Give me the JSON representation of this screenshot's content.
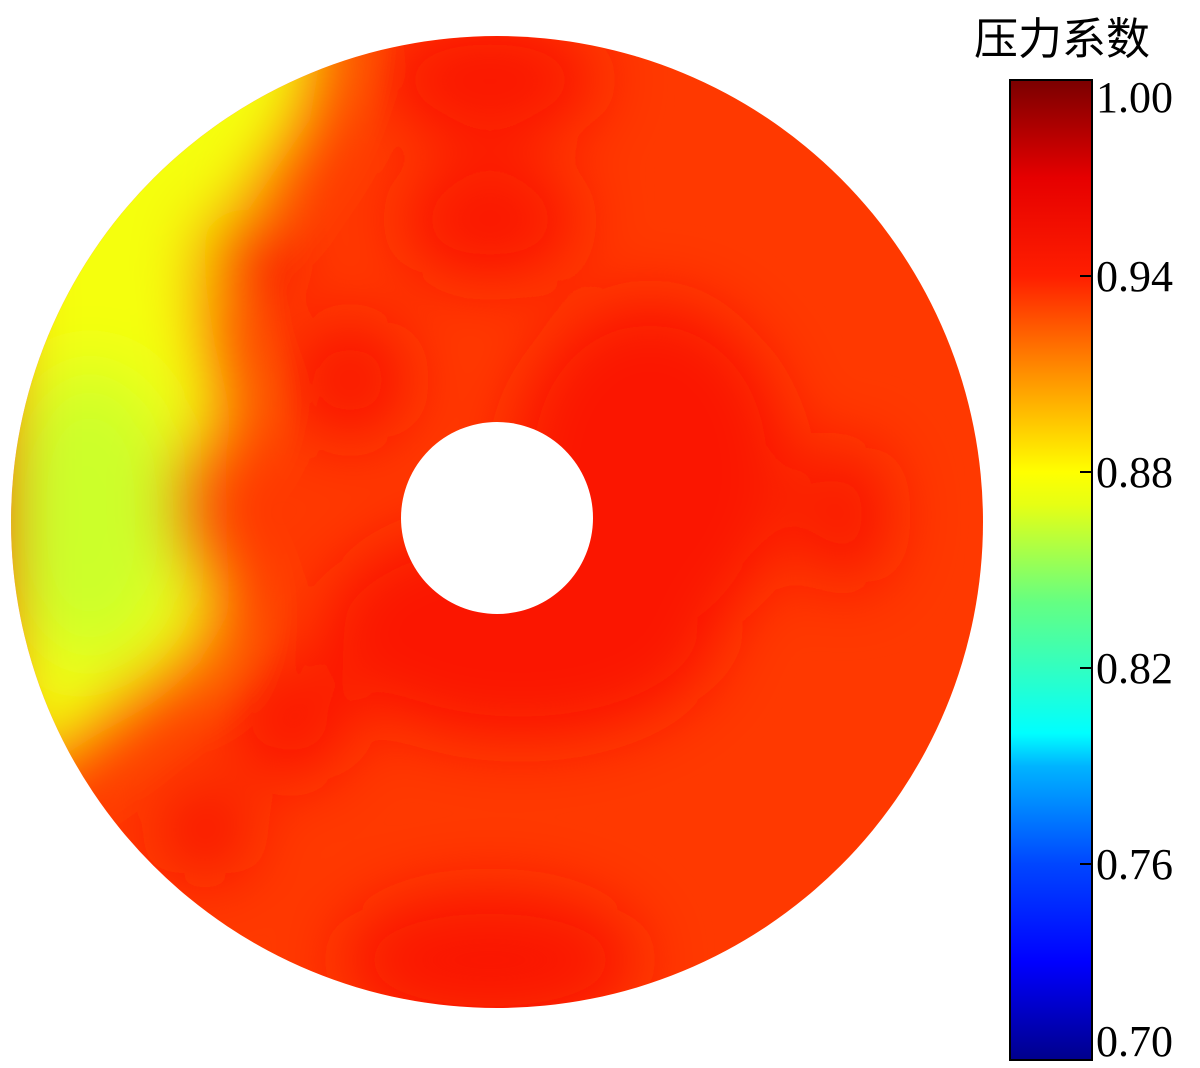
{
  "chart_data": {
    "type": "heatmap",
    "subtype": "annular-contour",
    "title": "",
    "colorbar": {
      "title": "压力系数",
      "range": [
        0.7,
        1.0
      ],
      "ticks": [
        {
          "value": 1.0,
          "label": "1.00"
        },
        {
          "value": 0.94,
          "label": "0.94"
        },
        {
          "value": 0.88,
          "label": "0.88"
        },
        {
          "value": 0.82,
          "label": "0.82"
        },
        {
          "value": 0.76,
          "label": "0.76"
        },
        {
          "value": 0.7,
          "label": "0.70"
        }
      ],
      "colormap": [
        {
          "value": 0.7,
          "color": "#00008c"
        },
        {
          "value": 0.73,
          "color": "#0000ff"
        },
        {
          "value": 0.76,
          "color": "#0046ff"
        },
        {
          "value": 0.79,
          "color": "#00b4ff"
        },
        {
          "value": 0.8,
          "color": "#00ffff"
        },
        {
          "value": 0.84,
          "color": "#64ff82"
        },
        {
          "value": 0.87,
          "color": "#e6ff14"
        },
        {
          "value": 0.88,
          "color": "#ffff00"
        },
        {
          "value": 0.91,
          "color": "#ff9000"
        },
        {
          "value": 0.94,
          "color": "#ff1e00"
        },
        {
          "value": 0.97,
          "color": "#e60000"
        },
        {
          "value": 1.0,
          "color": "#7a0000"
        }
      ]
    },
    "field": {
      "base_value": 0.933,
      "description_regions": [
        {
          "region": "left sector",
          "value": 0.876
        },
        {
          "region": "upper-left lobe",
          "value": 0.948
        },
        {
          "region": "left-middle lobe",
          "value": 0.946
        },
        {
          "region": "lower-left lobe",
          "value": 0.945
        },
        {
          "region": "bottom-left lobe",
          "value": 0.948
        },
        {
          "region": "top",
          "value": 0.945
        },
        {
          "region": "bottom",
          "value": 0.946
        },
        {
          "region": "right",
          "value": 0.945
        },
        {
          "region": "right-center lobe",
          "value": 0.947
        }
      ]
    }
  }
}
